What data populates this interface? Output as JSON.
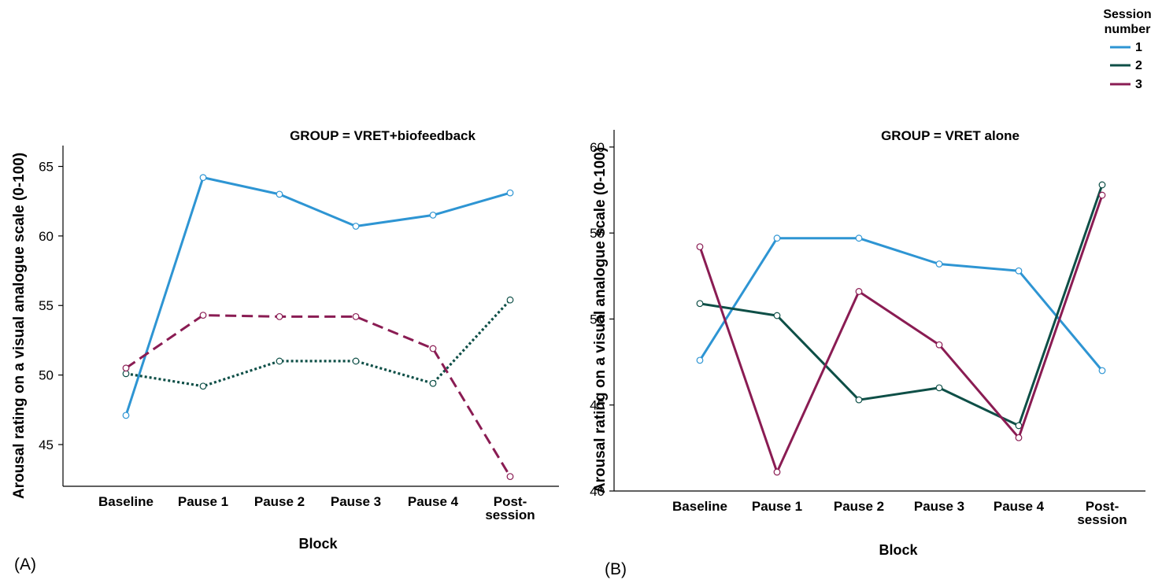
{
  "legend": {
    "title_line1": "Session",
    "title_line2": "number"
  },
  "colors": {
    "session1": "#2e95d3",
    "session2": "#0e4f47",
    "session3": "#8a1c53"
  },
  "chart_data": [
    {
      "type": "line",
      "panel_label": "(A)",
      "title": "GROUP = VRET+biofeedback",
      "xlabel": "Block",
      "ylabel": "Arousal rating on a visual analogue scale (0-100)",
      "categories": [
        "Baseline",
        "Pause 1",
        "Pause 2",
        "Pause 3",
        "Pause 4",
        "Post-\nsession"
      ],
      "ylim": [
        42,
        66.5
      ],
      "yticks": [
        45,
        50,
        55,
        60,
        65
      ],
      "legend_position": "top-right",
      "series": [
        {
          "name": "1",
          "style": "solid",
          "values": [
            47.1,
            64.2,
            63.0,
            60.7,
            61.5,
            63.1
          ]
        },
        {
          "name": "2",
          "style": "dotted",
          "values": [
            50.1,
            49.2,
            51.0,
            51.0,
            49.4,
            55.4
          ]
        },
        {
          "name": "3",
          "style": "dashed",
          "values": [
            50.5,
            54.3,
            54.2,
            54.2,
            51.9,
            42.7
          ]
        }
      ]
    },
    {
      "type": "line",
      "panel_label": "(B)",
      "title": "GROUP = VRET alone",
      "xlabel": "Block",
      "ylabel": "Arousal rating on a visual analogue scale (0-100)",
      "categories": [
        "Baseline",
        "Pause 1",
        "Pause 2",
        "Pause 3",
        "Pause 4",
        "Post-\nsession"
      ],
      "ylim": [
        40,
        61
      ],
      "yticks": [
        40,
        45,
        50,
        55,
        60
      ],
      "legend_position": "top-right",
      "series": [
        {
          "name": "1",
          "style": "solid",
          "values": [
            47.6,
            54.7,
            54.7,
            53.2,
            52.8,
            47.0
          ]
        },
        {
          "name": "2",
          "style": "solid",
          "values": [
            50.9,
            50.2,
            45.3,
            46.0,
            43.8,
            57.8
          ]
        },
        {
          "name": "3",
          "style": "solid",
          "values": [
            54.2,
            41.1,
            51.6,
            48.5,
            43.1,
            57.2
          ]
        }
      ]
    }
  ]
}
